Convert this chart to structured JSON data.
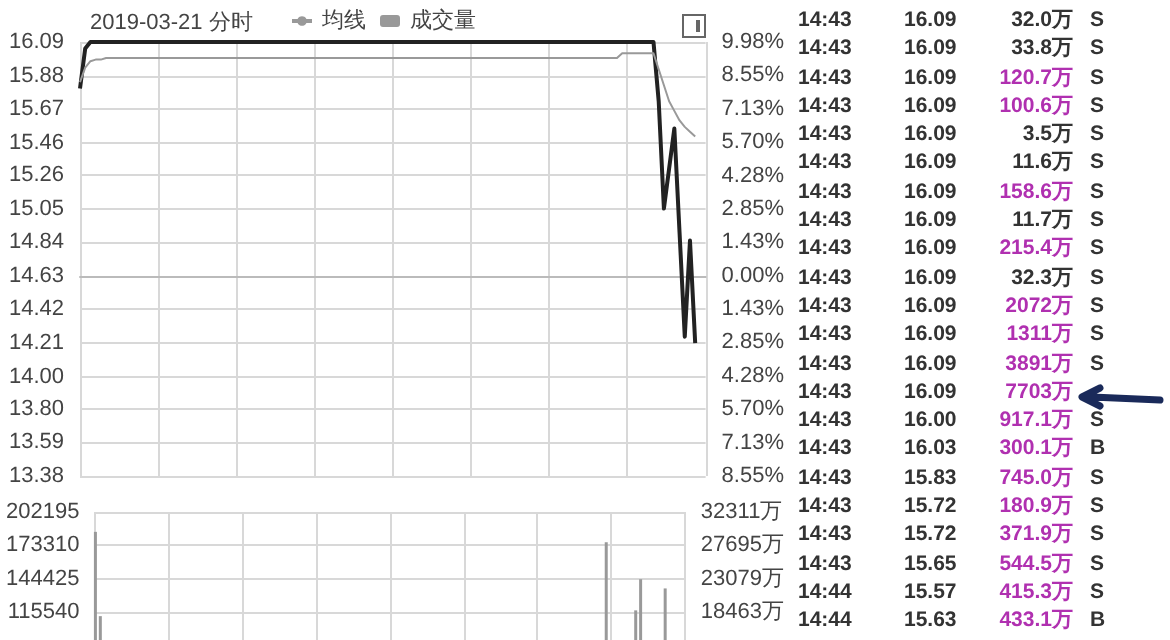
{
  "chart_data": [
    {
      "type": "line",
      "title": "2019-03-21 分时",
      "categories": [
        null,
        null,
        null,
        null,
        null,
        null,
        null,
        null,
        null,
        null,
        null,
        null,
        null,
        null,
        null,
        null,
        null,
        null,
        null,
        null,
        null,
        null,
        null,
        null,
        null,
        null,
        null,
        null,
        null,
        null,
        null,
        null,
        null,
        null,
        null,
        null,
        null,
        null,
        null,
        null,
        null,
        null,
        null,
        null,
        null,
        null,
        null,
        null,
        null,
        null,
        null,
        null,
        null,
        null,
        null,
        null,
        null,
        null,
        null,
        null,
        null,
        null,
        null,
        null,
        null,
        null,
        null,
        null,
        null,
        null,
        null,
        null,
        null,
        null,
        null,
        null,
        null,
        null,
        null,
        null,
        null,
        null,
        null,
        null,
        null,
        null,
        null,
        null,
        null,
        null,
        null,
        null,
        null,
        null,
        null,
        null,
        null,
        null,
        null,
        null,
        null,
        null,
        null,
        null,
        null,
        null,
        null,
        null,
        null,
        null,
        null,
        null,
        null,
        null,
        null,
        null,
        null,
        null,
        null,
        null,
        null
      ],
      "series": [
        {
          "color": "#222222",
          "values": [
            15.8,
            16.05,
            16.09,
            16.09,
            16.09,
            16.09,
            16.09,
            16.09,
            16.09,
            16.09,
            16.09,
            16.09,
            16.09,
            16.09,
            16.09,
            16.09,
            16.09,
            16.09,
            16.09,
            16.09,
            16.09,
            16.09,
            16.09,
            16.09,
            16.09,
            16.09,
            16.09,
            16.09,
            16.09,
            16.09,
            16.09,
            16.09,
            16.09,
            16.09,
            16.09,
            16.09,
            16.09,
            16.09,
            16.09,
            16.09,
            16.09,
            16.09,
            16.09,
            16.09,
            16.09,
            16.09,
            16.09,
            16.09,
            16.09,
            16.09,
            16.09,
            16.09,
            16.09,
            16.09,
            16.09,
            16.09,
            16.09,
            16.09,
            16.09,
            16.09,
            16.09,
            16.09,
            16.09,
            16.09,
            16.09,
            16.09,
            16.09,
            16.09,
            16.09,
            16.09,
            16.09,
            16.09,
            16.09,
            16.09,
            16.09,
            16.09,
            16.09,
            16.09,
            16.09,
            16.09,
            16.09,
            16.09,
            16.09,
            16.09,
            16.09,
            16.09,
            16.09,
            16.09,
            16.09,
            16.09,
            16.09,
            16.09,
            16.09,
            16.09,
            16.09,
            16.09,
            16.09,
            16.09,
            16.09,
            16.09,
            16.09,
            16.09,
            16.09,
            16.09,
            16.09,
            16.09,
            16.09,
            16.09,
            16.09,
            16.09,
            16.09,
            15.72,
            15.05,
            15.3,
            15.55,
            14.9,
            14.25,
            14.85,
            14.21,
            null,
            null
          ]
        },
        {
          "name": "均线",
          "color": "#999999",
          "values": [
            15.84,
            15.93,
            15.97,
            15.98,
            15.98,
            15.99,
            15.99,
            15.99,
            15.99,
            15.99,
            15.99,
            15.99,
            15.99,
            15.99,
            15.99,
            15.99,
            15.99,
            15.99,
            15.99,
            15.99,
            15.99,
            15.99,
            15.99,
            15.99,
            15.99,
            15.99,
            15.99,
            15.99,
            15.99,
            15.99,
            15.99,
            15.99,
            15.99,
            15.99,
            15.99,
            15.99,
            15.99,
            15.99,
            15.99,
            15.99,
            15.99,
            15.99,
            15.99,
            15.99,
            15.99,
            15.99,
            15.99,
            15.99,
            15.99,
            15.99,
            15.99,
            15.99,
            15.99,
            15.99,
            15.99,
            15.99,
            15.99,
            15.99,
            15.99,
            15.99,
            15.99,
            15.99,
            15.99,
            15.99,
            15.99,
            15.99,
            15.99,
            15.99,
            15.99,
            15.99,
            15.99,
            15.99,
            15.99,
            15.99,
            15.99,
            15.99,
            15.99,
            15.99,
            15.99,
            15.99,
            15.99,
            15.99,
            15.99,
            15.99,
            15.99,
            15.99,
            15.99,
            15.99,
            15.99,
            15.99,
            15.99,
            15.99,
            15.99,
            15.99,
            15.99,
            15.99,
            15.99,
            15.99,
            15.99,
            15.99,
            15.99,
            15.99,
            15.99,
            15.99,
            16.02,
            16.02,
            16.02,
            16.02,
            16.02,
            16.02,
            16.02,
            15.92,
            15.82,
            15.72,
            15.66,
            15.6,
            15.56,
            15.53,
            15.5,
            null,
            null
          ]
        }
      ],
      "ylim": [
        13.38,
        16.09
      ],
      "yticks": [
        16.09,
        15.88,
        15.67,
        15.46,
        15.26,
        15.05,
        14.84,
        14.63,
        14.42,
        14.21,
        {
          "value": 14,
          "label": "14.00"
        },
        {
          "value": 13.8,
          "label": "13.80"
        },
        13.59,
        13.38
      ],
      "y2lim": [
        -8.55,
        9.98
      ],
      "y2ticks": [
        {
          "value": 9.98,
          "label": "9.98%"
        },
        {
          "value": 8.55,
          "label": "8.55%"
        },
        {
          "value": 7.13,
          "label": "7.13%"
        },
        {
          "value": 5.7,
          "label": "5.70%"
        },
        {
          "value": 4.28,
          "label": "4.28%"
        },
        {
          "value": 2.85,
          "label": "2.85%"
        },
        {
          "value": 1.43,
          "label": "1.43%"
        },
        {
          "value": 0,
          "label": "0.00%"
        },
        {
          "value": -1.43,
          "label": "1.43%"
        },
        {
          "value": -2.85,
          "label": "2.85%"
        },
        {
          "value": -4.28,
          "label": "4.28%"
        },
        {
          "value": -5.7,
          "label": "5.70%"
        },
        {
          "value": -7.13,
          "label": "7.13%"
        },
        {
          "value": -8.55,
          "label": "8.55%"
        }
      ],
      "tick_labels": "y",
      "grid": true,
      "legend": "top left",
      "line_style": "solid",
      "annotations": [
        "14:43 16.09 32.0万 S",
        "14:43 16.09 33.8万 S",
        "14:43 16.09 120.7万 S",
        "14:43 16.09 100.6万 S",
        "14:43 16.09 3.5万 S",
        "14:43 16.09 11.6万 S",
        "14:43 16.09 158.6万 S",
        "14:43 16.09 11.7万 S",
        "14:43 16.09 215.4万 S",
        "14:43 16.09 32.3万 S",
        "14:43 16.09 2072万 S",
        "14:43 16.09 1311万 S",
        "14:43 16.09 3891万 S",
        "14:43 16.09 7703万",
        "14:43 16.00 917.1万 S",
        "14:43 16.03 300.1万 B",
        "14:43 15.83 745.0万 S",
        "14:43 15.72 180.9万 S",
        "14:43 15.72 371.9万 S",
        "14:43 15.65 544.5万 S",
        "14:44 15.57 415.3万 S",
        "14:44 15.63 433.1万 B"
      ]
    },
    {
      "type": "bar",
      "categories": [
        null,
        null,
        null,
        null,
        null,
        null,
        null,
        null,
        null,
        null,
        null,
        null,
        null,
        null,
        null,
        null,
        null,
        null,
        null,
        null,
        null,
        null,
        null,
        null,
        null,
        null,
        null,
        null,
        null,
        null,
        null,
        null,
        null,
        null,
        null,
        null,
        null,
        null,
        null,
        null,
        null,
        null,
        null,
        null,
        null,
        null,
        null,
        null,
        null,
        null,
        null,
        null,
        null,
        null,
        null,
        null,
        null,
        null,
        null,
        null,
        null,
        null,
        null,
        null,
        null,
        null,
        null,
        null,
        null,
        null,
        null,
        null,
        null,
        null,
        null,
        null,
        null,
        null,
        null,
        null,
        null,
        null,
        null,
        null,
        null,
        null,
        null,
        null,
        null,
        null,
        null,
        null,
        null,
        null,
        null,
        null,
        null,
        null,
        null,
        null,
        null,
        null,
        null,
        null,
        null,
        null,
        null,
        null,
        null,
        null,
        null,
        null,
        null,
        null,
        null,
        null,
        null,
        null,
        null,
        null,
        null
      ],
      "series": [
        {
          "name": "成交量",
          "color": "#999999",
          "values": [
            185000,
            112000,
            null,
            null,
            null,
            null,
            null,
            null,
            null,
            null,
            null,
            null,
            null,
            null,
            null,
            null,
            null,
            null,
            null,
            null,
            null,
            null,
            null,
            null,
            null,
            null,
            null,
            null,
            null,
            null,
            null,
            null,
            null,
            null,
            null,
            null,
            null,
            null,
            null,
            null,
            null,
            null,
            null,
            null,
            null,
            null,
            null,
            null,
            null,
            null,
            null,
            null,
            null,
            null,
            null,
            null,
            null,
            null,
            null,
            null,
            null,
            null,
            null,
            null,
            null,
            null,
            null,
            null,
            null,
            null,
            null,
            null,
            null,
            null,
            null,
            null,
            null,
            null,
            null,
            null,
            null,
            null,
            null,
            null,
            null,
            null,
            null,
            null,
            null,
            null,
            null,
            null,
            null,
            null,
            null,
            null,
            null,
            null,
            null,
            null,
            null,
            null,
            null,
            null,
            176000,
            null,
            null,
            null,
            null,
            null,
            117000,
            144000,
            null,
            null,
            null,
            null,
            136000,
            null,
            null,
            null,
            null
          ]
        }
      ],
      "ylim": [
        91330,
        202195
      ],
      "yticks": [
        115540,
        144425,
        173310,
        202195
      ],
      "y2lim": [
        14594,
        32311
      ],
      "y2ticks": [
        {
          "value": 18463,
          "label": "18463万"
        },
        {
          "value": 23079,
          "label": "23079万"
        },
        {
          "value": 27695,
          "label": "27695万"
        },
        {
          "value": 32311,
          "label": "32311万"
        }
      ],
      "tick_labels": "y",
      "grid": true,
      "legend": "top"
    }
  ]
}
